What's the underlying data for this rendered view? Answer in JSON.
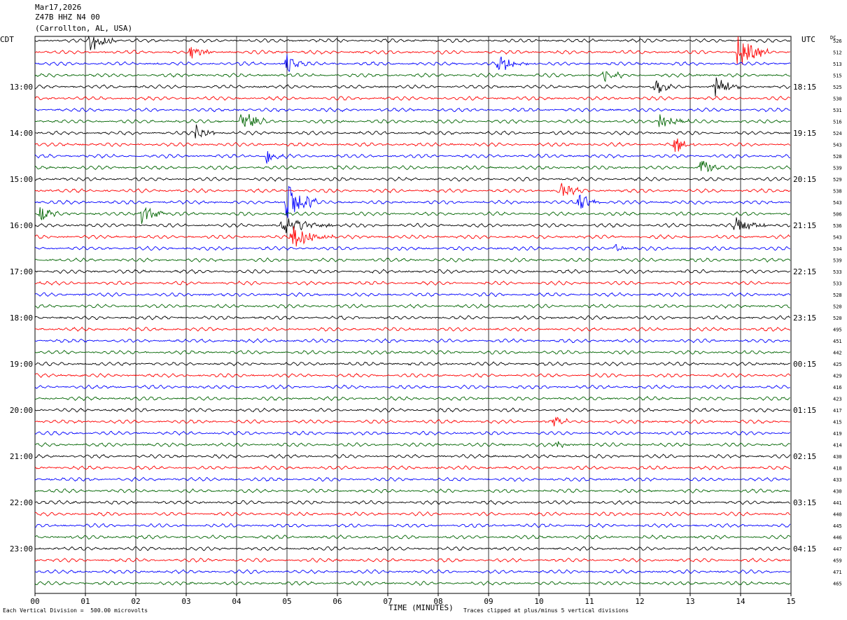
{
  "header": {
    "date": "Mar17,2026",
    "station": "Z47B HHZ N4 00",
    "location": "(Carrollton, AL, USA)"
  },
  "left_zone_label": "CDT",
  "right_zone_label": "UTC",
  "dc_label": "DC",
  "footer": {
    "scale_note": "Each Vertical Division =  500.00 microvolts",
    "clip_note": "Traces clipped at plus/minus 5 vertical divisions",
    "x_title": "TIME (MINUTES)"
  },
  "colors": {
    "black": "#000000",
    "red": "#ff0000",
    "blue": "#0000ff",
    "green": "#006400"
  },
  "chart_data": {
    "type": "line",
    "xlabel": "TIME (MINUTES)",
    "xlim": [
      0,
      15
    ],
    "x_ticks": [
      "00",
      "01",
      "02",
      "03",
      "04",
      "05",
      "06",
      "07",
      "08",
      "09",
      "10",
      "11",
      "12",
      "13",
      "14",
      "15"
    ],
    "minutes_per_line": 15,
    "trace_color_cycle": [
      "black",
      "red",
      "blue",
      "green"
    ],
    "left_hour_labels": [
      "13:00",
      "14:00",
      "15:00",
      "16:00",
      "17:00",
      "18:00",
      "19:00",
      "20:00",
      "21:00",
      "22:00",
      "23:00"
    ],
    "right_hour_labels": [
      "18:15",
      "19:15",
      "20:15",
      "21:15",
      "22:15",
      "23:15",
      "00:15",
      "01:15",
      "02:15",
      "03:15",
      "04:15"
    ],
    "dc_offsets": [
      "526",
      "512",
      "513",
      "515",
      "525",
      "530",
      "531",
      "516",
      "524",
      "543",
      "528",
      "539",
      "529",
      "538",
      "543",
      "506",
      "536",
      "543",
      "534",
      "539",
      "533",
      "533",
      "528",
      "520",
      "520",
      "495",
      "451",
      "442",
      "425",
      "429",
      "416",
      "423",
      "417",
      "415",
      "419",
      "414",
      "430",
      "418",
      "433",
      "430",
      "441",
      "440",
      "445",
      "446",
      "447",
      "459",
      "471",
      "465"
    ],
    "events": [
      {
        "line": 0,
        "minute": 1.1,
        "amplitude": 4,
        "duration_min": 0.5
      },
      {
        "line": 1,
        "minute": 3.1,
        "amplitude": 3,
        "duration_min": 0.4
      },
      {
        "line": 1,
        "minute": 13.95,
        "amplitude": 6,
        "duration_min": 0.6
      },
      {
        "line": 2,
        "minute": 5.0,
        "amplitude": 3,
        "duration_min": 0.4
      },
      {
        "line": 2,
        "minute": 9.2,
        "amplitude": 2.5,
        "duration_min": 0.6
      },
      {
        "line": 3,
        "minute": 11.3,
        "amplitude": 2,
        "duration_min": 0.4
      },
      {
        "line": 4,
        "minute": 12.3,
        "amplitude": 2.5,
        "duration_min": 0.4
      },
      {
        "line": 4,
        "minute": 13.5,
        "amplitude": 3,
        "duration_min": 0.5
      },
      {
        "line": 7,
        "minute": 4.1,
        "amplitude": 3.5,
        "duration_min": 0.5
      },
      {
        "line": 7,
        "minute": 12.4,
        "amplitude": 2.5,
        "duration_min": 0.6
      },
      {
        "line": 8,
        "minute": 3.2,
        "amplitude": 3,
        "duration_min": 0.4
      },
      {
        "line": 9,
        "minute": 12.7,
        "amplitude": 2.5,
        "duration_min": 0.4
      },
      {
        "line": 10,
        "minute": 4.6,
        "amplitude": 2.5,
        "duration_min": 0.4
      },
      {
        "line": 11,
        "minute": 13.2,
        "amplitude": 3,
        "duration_min": 0.4
      },
      {
        "line": 13,
        "minute": 10.4,
        "amplitude": 2.5,
        "duration_min": 0.5
      },
      {
        "line": 14,
        "minute": 5.0,
        "amplitude": 6,
        "duration_min": 0.6
      },
      {
        "line": 14,
        "minute": 10.8,
        "amplitude": 2.5,
        "duration_min": 0.5
      },
      {
        "line": 15,
        "minute": 0.1,
        "amplitude": 2.5,
        "duration_min": 0.4
      },
      {
        "line": 15,
        "minute": 2.1,
        "amplitude": 3.5,
        "duration_min": 0.5
      },
      {
        "line": 16,
        "minute": 4.9,
        "amplitude": 2.5,
        "duration_min": 1.0
      },
      {
        "line": 16,
        "minute": 13.9,
        "amplitude": 3,
        "duration_min": 0.6
      },
      {
        "line": 17,
        "minute": 5.1,
        "amplitude": 3.5,
        "duration_min": 0.8
      },
      {
        "line": 18,
        "minute": 11.5,
        "amplitude": 1.5,
        "duration_min": 0.3
      },
      {
        "line": 33,
        "minute": 10.3,
        "amplitude": 1.5,
        "duration_min": 0.4
      },
      {
        "line": 35,
        "minute": 10.3,
        "amplitude": 1.5,
        "duration_min": 0.4
      }
    ]
  }
}
